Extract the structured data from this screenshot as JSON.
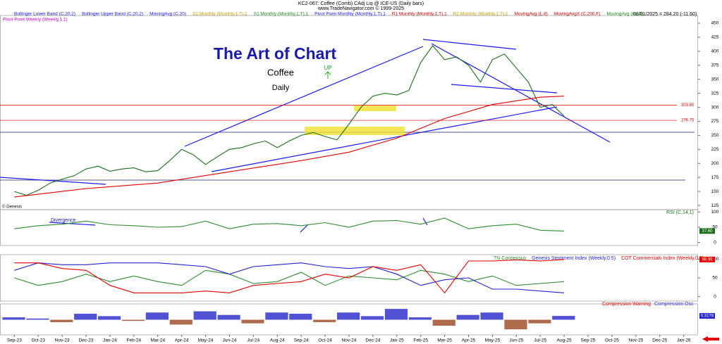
{
  "chart_data": [
    {
      "type": "line",
      "title": "KC2-067: Coffee (Comb) CAdj Liq @ ICE-US (Daily bars)",
      "subtitle": "www.TradeNavigator.com © 1999-2025",
      "status": "08/01/2025 = 284.20 (-11.60)",
      "indicators": [
        {
          "label": "Bollinger Lower Band (C,20,2)",
          "color": "#1a1aff"
        },
        {
          "label": "Bollinger Upper Band (C,20,2)",
          "color": "#1a1aff"
        },
        {
          "label": "MovingAvg (C,20)",
          "color": "#1a1aff"
        },
        {
          "label": "S2 Monthly (Monthly,1,T),1",
          "color": "#c8a000"
        },
        {
          "label": "S1 Monthly (Monthly,1,T),1",
          "color": "#1f8f1f"
        },
        {
          "label": "Pivot Point Monthly (Monthly,1,T),1",
          "color": "#1a1aff"
        },
        {
          "label": "R1 Monthly (Monthly,1,T),1",
          "color": "#d00000"
        },
        {
          "label": "R2 Monthly (Monthly,1,T),1",
          "color": "#c8a000"
        },
        {
          "label": "MovingAvg (L,8)",
          "color": "#d00000"
        },
        {
          "label": "MovingAvgX (C,200,F)",
          "color": "#d00000"
        },
        {
          "label": "MovingAvg (H,10)",
          "color": "#1f8f1f"
        },
        {
          "label": "Pivot Point Weekly (Weekly,1,1)",
          "color": "#cc00cc"
        }
      ],
      "heading": "The Art of Chart",
      "commodity": "Coffee",
      "timeframe": "Daily",
      "signal": "UP",
      "source": "© Genesis",
      "x": [
        0,
        0.5,
        1,
        1.5,
        2,
        2.5,
        3,
        3.5,
        4,
        4.5,
        5,
        5.5,
        6,
        6.5,
        7,
        7.5,
        8,
        8.5,
        9,
        9.5,
        10,
        10.5,
        11,
        11.5,
        12,
        12.5,
        13,
        13.5,
        14,
        14.5,
        15,
        15.5,
        16,
        16.5,
        17,
        17.5,
        18,
        18.5,
        19,
        19.5,
        20,
        20.5,
        21,
        21.5,
        22,
        22.5,
        23
      ],
      "series": [
        {
          "color": "#1b6e1b",
          "values": [
            150,
            143,
            152,
            165,
            172,
            178,
            190,
            195,
            186,
            190,
            192,
            185,
            187,
            205,
            225,
            215,
            198,
            212,
            225,
            228,
            235,
            240,
            228,
            240,
            250,
            255,
            248,
            242,
            270,
            300,
            320,
            325,
            322,
            330,
            380,
            410,
            385,
            390,
            375,
            345,
            385,
            395,
            370,
            345,
            300,
            305,
            284.2
          ]
        },
        {
          "name": "MovingAvgX (C,200,F)",
          "color": "#e00000",
          "x": [
            0,
            3,
            6,
            9,
            12,
            14,
            16,
            18,
            20,
            22,
            23
          ],
          "values": [
            140,
            155,
            165,
            185,
            205,
            220,
            245,
            280,
            305,
            318,
            320
          ]
        }
      ],
      "levels": [
        {
          "value": 303.8,
          "label": "303.80"
        },
        {
          "value": 276.75,
          "label": "276.75"
        }
      ],
      "level_color": "#e00000",
      "xlim": [
        -0.6,
        28.6
      ],
      "ylim": [
        112,
        462
      ],
      "yticks": [
        125,
        150,
        175,
        200,
        225,
        250,
        275,
        300,
        325,
        350,
        375,
        400,
        425,
        450
      ]
    },
    {
      "type": "line",
      "title": "RSI (C,14,1)",
      "annotation": "Divergence",
      "x": [
        0,
        1,
        2,
        3,
        4,
        5,
        6,
        7,
        8,
        9,
        10,
        11,
        12,
        13,
        14,
        15,
        16,
        17,
        18,
        19,
        20,
        21,
        22,
        23
      ],
      "series": [
        {
          "color": "#2e8b2e",
          "values": [
            45,
            55,
            60,
            70,
            58,
            55,
            50,
            52,
            70,
            45,
            60,
            62,
            55,
            65,
            50,
            70,
            72,
            60,
            80,
            45,
            55,
            60,
            40,
            37.6
          ]
        }
      ],
      "current": {
        "value": 37.6,
        "label": "37.60"
      },
      "xlim": [
        -0.6,
        28.6
      ],
      "ylim": [
        -10,
        110
      ],
      "yticks": [
        0,
        50,
        100
      ]
    },
    {
      "type": "line",
      "x": [
        0,
        1,
        2,
        3,
        4,
        5,
        6,
        7,
        8,
        9,
        10,
        11,
        12,
        13,
        14,
        15,
        16,
        17,
        18,
        19,
        20,
        21,
        22,
        23
      ],
      "series": [
        {
          "name": "TN Consensus",
          "color": "#2e8b2e",
          "values": [
            50,
            30,
            40,
            60,
            40,
            55,
            40,
            30,
            70,
            60,
            35,
            40,
            65,
            30,
            55,
            50,
            45,
            70,
            60,
            40,
            55,
            30,
            35,
            40
          ]
        },
        {
          "name": "Genesis Sentiment Index (Weekly,0.5)",
          "color": "#2222cc",
          "values": [
            70,
            90,
            85,
            85,
            90,
            90,
            90,
            85,
            80,
            60,
            80,
            85,
            90,
            80,
            75,
            80,
            60,
            30,
            45,
            50,
            20,
            20,
            15,
            10
          ]
        },
        {
          "name": "COT Commercials Index (Weekly,0.5)",
          "color": "#e00000",
          "values": [
            90,
            90,
            75,
            70,
            30,
            10,
            10,
            10,
            15,
            10,
            30,
            35,
            40,
            60,
            50,
            80,
            70,
            85,
            10,
            95,
            95,
            98,
            95,
            98.99
          ]
        }
      ],
      "current": {
        "value": 98.99,
        "label": "98.99"
      },
      "xlim": [
        -0.6,
        28.6
      ],
      "ylim": [
        -10,
        110
      ],
      "yticks": [
        0,
        50,
        100
      ]
    },
    {
      "type": "bar",
      "warning_label": "Compression Warning",
      "warning_color": "#e00000",
      "x": [
        0,
        1,
        2,
        3,
        4,
        5,
        6,
        7,
        8,
        9,
        10,
        11,
        12,
        13,
        14,
        15,
        16,
        17,
        18,
        19,
        20,
        21,
        22,
        23
      ],
      "series": [
        {
          "name": "Compression Osc",
          "color": "#3333cc",
          "negative_color": "#a0522d",
          "values": [
            0.2,
            0.1,
            -0.2,
            0.5,
            0.3,
            -0.1,
            0.6,
            -0.4,
            0.7,
            0.4,
            -0.3,
            0.6,
            0.5,
            -0.2,
            0.6,
            0.3,
            0.9,
            0.2,
            -0.5,
            0.4,
            0.6,
            -0.8,
            -0.3,
            0.3178
          ]
        }
      ],
      "current": {
        "value": 0.3178,
        "label": "0.3178"
      },
      "xlim": [
        -0.6,
        28.6
      ],
      "ylim": [
        -1.2,
        1.2
      ],
      "xticks": [
        {
          "value": 0,
          "label": "Sep-23"
        },
        {
          "value": 1,
          "label": "Oct-23"
        },
        {
          "value": 2,
          "label": "Nov-23"
        },
        {
          "value": 3,
          "label": "Dec-23"
        },
        {
          "value": 4,
          "label": "Jan-24"
        },
        {
          "value": 5,
          "label": "Feb-24"
        },
        {
          "value": 6,
          "label": "Mar-24"
        },
        {
          "value": 7,
          "label": "Apr-24"
        },
        {
          "value": 8,
          "label": "May-24"
        },
        {
          "value": 9,
          "label": "Jun-24"
        },
        {
          "value": 10,
          "label": "Jul-24"
        },
        {
          "value": 11,
          "label": "Aug-24"
        },
        {
          "value": 12,
          "label": "Sep-24"
        },
        {
          "value": 13,
          "label": "Oct-24"
        },
        {
          "value": 14,
          "label": "Nov-24"
        },
        {
          "value": 15,
          "label": "Dec-24"
        },
        {
          "value": 16,
          "label": "Jan-25"
        },
        {
          "value": 17,
          "label": "Feb-25"
        },
        {
          "value": 18,
          "label": "Mar-25"
        },
        {
          "value": 19,
          "label": "Apr-25"
        },
        {
          "value": 20,
          "label": "May-25"
        },
        {
          "value": 21,
          "label": "Jun-25"
        },
        {
          "value": 22,
          "label": "Jul-25"
        },
        {
          "value": 23,
          "label": "Aug-25"
        },
        {
          "value": 24,
          "label": "Sep-25"
        },
        {
          "value": 25,
          "label": "Oct-25"
        },
        {
          "value": 26,
          "label": "Nov-25"
        },
        {
          "value": 27,
          "label": "Dec-25"
        },
        {
          "value": 28,
          "label": "Jan-26"
        }
      ]
    }
  ]
}
